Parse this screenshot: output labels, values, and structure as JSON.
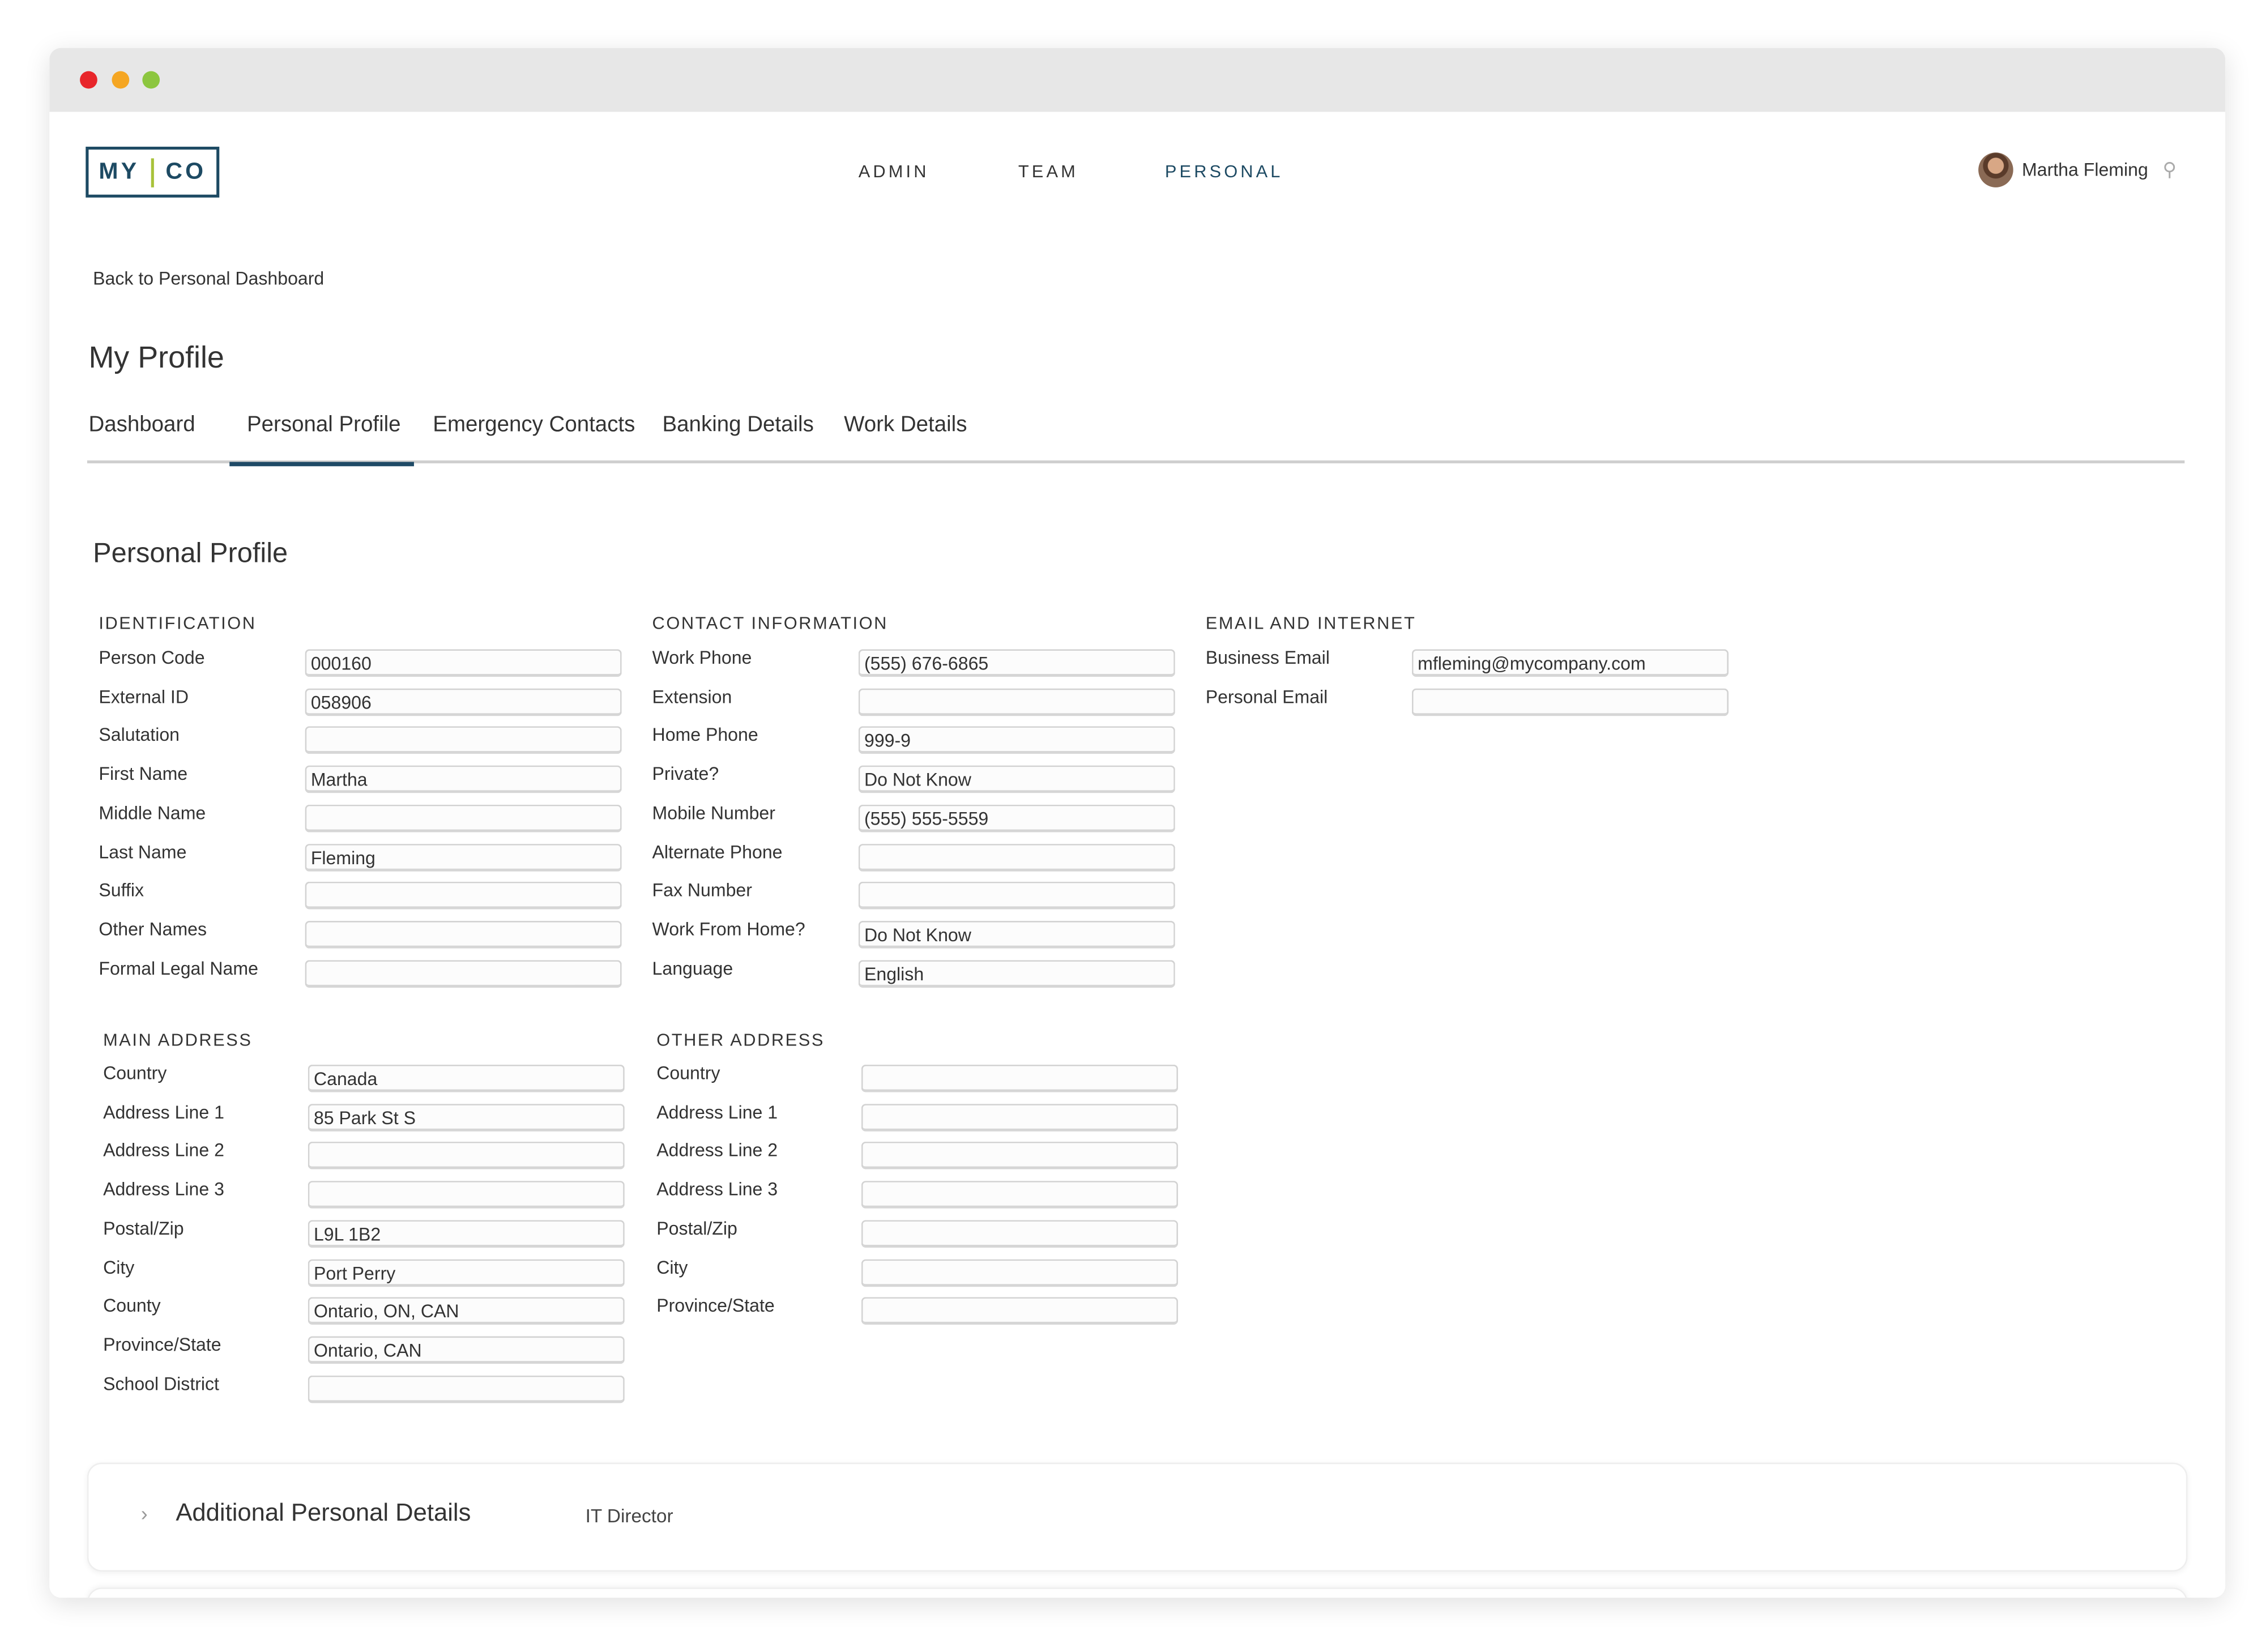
{
  "window": {
    "dots": {
      "close": "#e8262b",
      "minimize": "#f5a623",
      "maximize": "#8cc63f"
    }
  },
  "header": {
    "logo_left": "MY",
    "logo_right": "CO",
    "nav": [
      {
        "label": "ADMIN"
      },
      {
        "label": "TEAM"
      },
      {
        "label": "PERSONAL",
        "active": true
      }
    ],
    "user_name": "Martha Fleming",
    "pin_icon": "map-pin-icon"
  },
  "back_link": "Back to Personal Dashboard",
  "page_title": "My Profile",
  "tabs": [
    {
      "label": "Dashboard"
    },
    {
      "label": "Personal Profile",
      "active": true
    },
    {
      "label": "Emergency Contacts"
    },
    {
      "label": "Banking Details"
    },
    {
      "label": "Work Details"
    }
  ],
  "section_title": "Personal Profile",
  "groups": [
    {
      "title": "IDENTIFICATION",
      "fields": [
        {
          "label": "Person Code",
          "value": "000160"
        },
        {
          "label": "External ID",
          "value": "058906"
        },
        {
          "label": "Salutation",
          "value": ""
        },
        {
          "label": "First Name",
          "value": "Martha"
        },
        {
          "label": "Middle Name",
          "value": ""
        },
        {
          "label": "Last Name",
          "value": "Fleming"
        },
        {
          "label": "Suffix",
          "value": ""
        },
        {
          "label": "Other Names",
          "value": ""
        },
        {
          "label": "Formal Legal Name",
          "value": ""
        }
      ]
    },
    {
      "title": "CONTACT INFORMATION",
      "fields": [
        {
          "label": "Work Phone",
          "value": "(555) 676-6865"
        },
        {
          "label": "Extension",
          "value": ""
        },
        {
          "label": "Home Phone",
          "value": "999-9"
        },
        {
          "label": "Private?",
          "value": "Do Not Know"
        },
        {
          "label": "Mobile Number",
          "value": "(555) 555-5559"
        },
        {
          "label": "Alternate Phone",
          "value": ""
        },
        {
          "label": "Fax Number",
          "value": ""
        },
        {
          "label": "Work From Home?",
          "value": "Do Not Know"
        },
        {
          "label": "Language",
          "value": "English"
        }
      ]
    },
    {
      "title": "EMAIL AND INTERNET",
      "fields": [
        {
          "label": "Business Email",
          "value": "mfleming@mycompany.com"
        },
        {
          "label": "Personal Email",
          "value": ""
        }
      ]
    },
    {
      "title": "MAIN ADDRESS",
      "fields": [
        {
          "label": "Country",
          "value": "Canada"
        },
        {
          "label": "Address Line 1",
          "value": "85 Park St S"
        },
        {
          "label": "Address Line 2",
          "value": ""
        },
        {
          "label": "Address Line 3",
          "value": ""
        },
        {
          "label": "Postal/Zip",
          "value": "L9L 1B2"
        },
        {
          "label": "City",
          "value": "Port Perry"
        },
        {
          "label": "County",
          "value": "Ontario, ON, CAN"
        },
        {
          "label": "Province/State",
          "value": "Ontario, CAN"
        },
        {
          "label": "School District",
          "value": ""
        }
      ]
    },
    {
      "title": "OTHER ADDRESS",
      "fields": [
        {
          "label": "Country",
          "value": ""
        },
        {
          "label": "Address Line 1",
          "value": ""
        },
        {
          "label": "Address Line 2",
          "value": ""
        },
        {
          "label": "Address Line 3",
          "value": ""
        },
        {
          "label": "Postal/Zip",
          "value": ""
        },
        {
          "label": "City",
          "value": ""
        },
        {
          "label": "Province/State",
          "value": ""
        }
      ]
    }
  ],
  "additional": {
    "title": "Additional Personal Details",
    "subtitle": "IT Director"
  },
  "accent": "#1f4a66"
}
